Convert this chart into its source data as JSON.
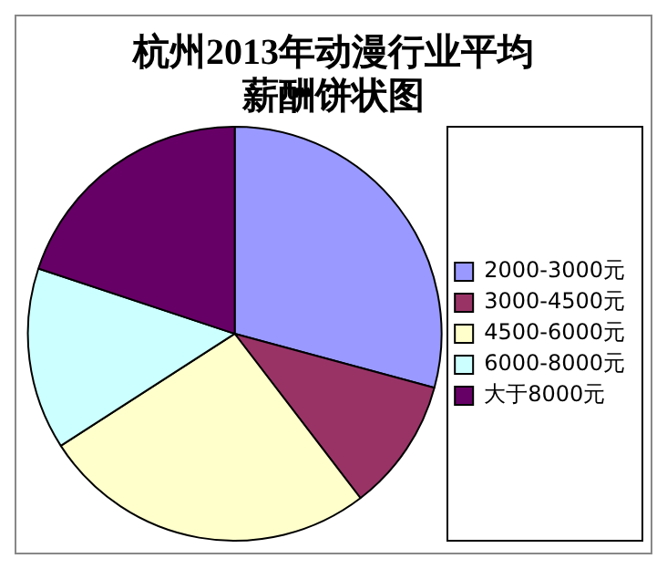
{
  "chart_data": {
    "type": "pie",
    "title": "杭州2013年动漫行业平均薪酬饼状图",
    "categories": [
      "2000-3000元",
      "3000-4500元",
      "4500-6000元",
      "6000-8000元",
      "大于8000元"
    ],
    "values": [
      29.2,
      10.4,
      26.3,
      14.2,
      19.9
    ],
    "colors": [
      "#9999ff",
      "#993366",
      "#ffffcc",
      "#ccffff",
      "#660066"
    ],
    "legend": "right"
  }
}
